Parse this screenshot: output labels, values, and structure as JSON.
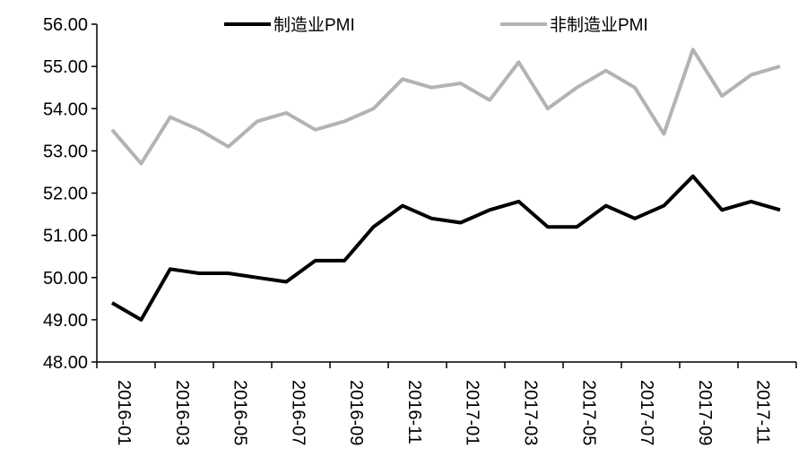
{
  "chart_data": {
    "type": "line",
    "x": [
      "2016-01",
      "2016-02",
      "2016-03",
      "2016-04",
      "2016-05",
      "2016-06",
      "2016-07",
      "2016-08",
      "2016-09",
      "2016-10",
      "2016-11",
      "2016-12",
      "2017-01",
      "2017-02",
      "2017-03",
      "2017-04",
      "2017-05",
      "2017-06",
      "2017-07",
      "2017-08",
      "2017-09",
      "2017-10",
      "2017-11",
      "2017-12"
    ],
    "x_tick_labels": [
      "2016-01",
      "2016-03",
      "2016-05",
      "2016-07",
      "2016-09",
      "2016-11",
      "2017-01",
      "2017-03",
      "2017-05",
      "2017-07",
      "2017-09",
      "2017-11"
    ],
    "y_tick_labels": [
      "48.00",
      "49.00",
      "50.00",
      "51.00",
      "52.00",
      "53.00",
      "54.00",
      "55.00",
      "56.00"
    ],
    "ylim": [
      48,
      56
    ],
    "grid": false,
    "legend_position": "top",
    "series": [
      {
        "name": "制造业PMI",
        "color": "#000000",
        "values": [
          49.4,
          49.0,
          50.2,
          50.1,
          50.1,
          50.0,
          49.9,
          50.4,
          50.4,
          51.2,
          51.7,
          51.4,
          51.3,
          51.6,
          51.8,
          51.2,
          51.2,
          51.7,
          51.4,
          51.7,
          52.4,
          51.6,
          51.8,
          51.6
        ]
      },
      {
        "name": "非制造业PMI",
        "color": "#b3b3b3",
        "values": [
          53.5,
          52.7,
          53.8,
          53.5,
          53.1,
          53.7,
          53.9,
          53.5,
          53.7,
          54.0,
          54.7,
          54.5,
          54.6,
          54.2,
          55.1,
          54.0,
          54.5,
          54.9,
          54.5,
          53.4,
          55.4,
          54.3,
          54.8,
          55.0
        ]
      }
    ]
  }
}
